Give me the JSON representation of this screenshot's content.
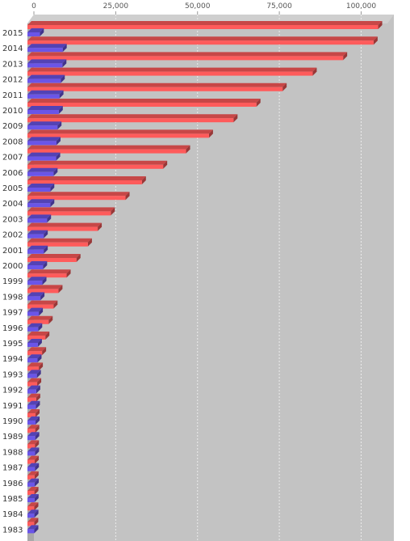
{
  "chart_data": {
    "type": "bar",
    "orientation": "horizontal",
    "rendering": "3d",
    "grid": true,
    "legend": "none",
    "xlim": [
      0,
      110000
    ],
    "x_ticks": [
      0,
      25000,
      50000,
      75000,
      100000
    ],
    "x_tick_labels": [
      "0",
      "25,000",
      "50,000",
      "75,000",
      "100,000"
    ],
    "categories": [
      "2015",
      "2014",
      "2013",
      "2012",
      "2011",
      "2010",
      "2009",
      "2008",
      "2007",
      "2006",
      "2005",
      "2004",
      "2003",
      "2002",
      "2001",
      "2000",
      "1999",
      "1998",
      "1997",
      "1996",
      "1995",
      "1994",
      "1993",
      "1992",
      "1991",
      "1990",
      "1989",
      "1988",
      "1987",
      "1986",
      "1985",
      "1984",
      "1983"
    ],
    "series": [
      {
        "color": "#ff5b5b",
        "values": [
          105200,
          103800,
          94500,
          85200,
          76000,
          68000,
          61000,
          53500,
          46500,
          39500,
          33000,
          28000,
          23500,
          19500,
          16500,
          13000,
          10000,
          7500,
          6000,
          4500,
          3500,
          2500,
          1500,
          1000,
          700,
          500,
          400,
          300,
          250,
          200,
          150,
          120,
          100
        ]
      },
      {
        "color": "#6a55e8",
        "values": [
          1800,
          8800,
          8700,
          8200,
          7800,
          7600,
          7200,
          6900,
          6800,
          6000,
          5000,
          5000,
          4000,
          3000,
          3000,
          2800,
          2600,
          2000,
          1500,
          1300,
          1200,
          1100,
          900,
          700,
          600,
          500,
          400,
          350,
          300,
          250,
          200,
          150,
          120
        ]
      }
    ]
  }
}
